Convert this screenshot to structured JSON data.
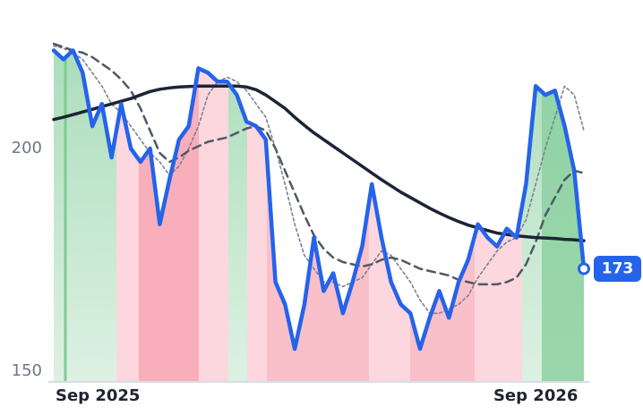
{
  "chart_data": {
    "type": "line",
    "categories": [
      "Sep 2025",
      null,
      null,
      null,
      null,
      null,
      null,
      null,
      null,
      null,
      null,
      null,
      null,
      null,
      null,
      null,
      null,
      null,
      null,
      null,
      null,
      null,
      null,
      null,
      null,
      null,
      null,
      null,
      null,
      null,
      null,
      null,
      null,
      null,
      null,
      null,
      null,
      null,
      null,
      null,
      null,
      null,
      null,
      null,
      null,
      null,
      null,
      null,
      null,
      null,
      "Sep 2026",
      null,
      null,
      null,
      null,
      null
    ],
    "series": [
      {
        "color": "#2563eb",
        "values": [
          222,
          220,
          222,
          217,
          205,
          210,
          198,
          210,
          200,
          197,
          200,
          183,
          193,
          202,
          205,
          218,
          217,
          215,
          215,
          212,
          206,
          205,
          202,
          170,
          165,
          155,
          165,
          180,
          168,
          172,
          163,
          170,
          178,
          192,
          180,
          170,
          165,
          163,
          155,
          162,
          168,
          162,
          170,
          175,
          183,
          180,
          178,
          182,
          180,
          192,
          214,
          212,
          213,
          205,
          195,
          173
        ]
      },
      {
        "color": "#1c2536",
        "values": [
          206.5,
          207,
          207.6,
          208.2,
          208.8,
          209.4,
          210,
          210.6,
          211.2,
          212,
          212.8,
          213.3,
          213.6,
          213.8,
          213.9,
          214,
          214,
          214,
          214,
          214,
          213.8,
          213.2,
          212,
          210.5,
          209,
          207,
          205.2,
          203.5,
          202,
          200.5,
          199,
          197.5,
          196,
          194.5,
          193,
          191.6,
          190.2,
          189,
          187.8,
          186.6,
          185.5,
          184.5,
          183.6,
          182.8,
          182.2,
          181.6,
          181,
          180.7,
          180.4,
          180.2,
          180,
          179.9,
          179.8,
          179.6,
          179.5,
          179.3
        ]
      },
      {
        "color": "#505866",
        "dash": "dashed",
        "values": [
          223.5,
          222.8,
          222,
          221.5,
          220.5,
          219,
          217.5,
          215.5,
          213,
          209,
          204,
          199,
          197,
          198,
          199.5,
          200.5,
          201.5,
          202,
          202.5,
          203.5,
          204.5,
          205,
          204,
          200,
          195,
          190,
          185,
          180.5,
          177.5,
          175.5,
          174.5,
          174,
          173.5,
          174,
          175,
          175.5,
          175,
          174,
          173,
          172.5,
          172,
          171.5,
          170.5,
          170,
          169.5,
          169.5,
          169.5,
          170,
          171,
          174,
          179,
          185,
          189,
          193,
          195,
          194.5
        ]
      },
      {
        "color": "#7a8290",
        "dash": "dotted",
        "values": [
          223,
          222.5,
          221.5,
          220,
          217,
          214,
          210,
          208,
          205,
          202,
          199,
          197,
          194,
          196,
          200,
          205,
          212,
          215,
          216,
          215,
          213,
          210,
          207,
          200,
          192,
          183,
          176,
          173,
          170,
          170,
          169,
          170,
          171,
          174,
          177,
          176,
          173,
          170,
          166,
          163,
          163,
          164,
          165,
          167,
          171,
          174,
          177,
          179,
          180,
          184,
          192,
          200,
          207,
          214,
          212,
          204
        ]
      }
    ],
    "ylim": [
      147.6,
      225.3
    ],
    "yticks": [
      150,
      200
    ]
  }
}
